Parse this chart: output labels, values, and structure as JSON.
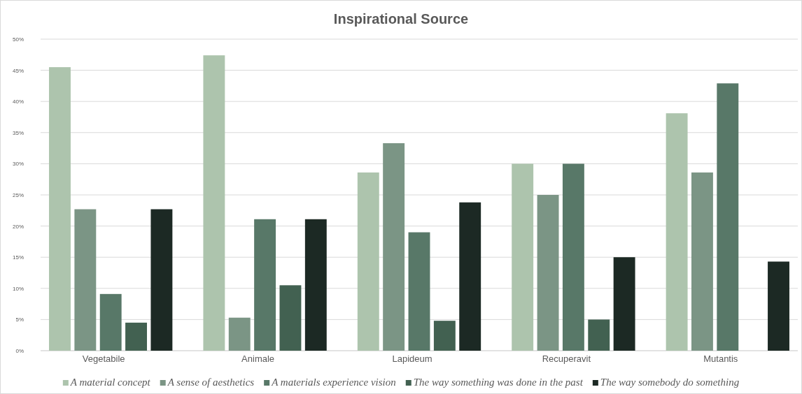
{
  "chart_data": {
    "type": "bar",
    "title": "Inspirational Source",
    "categories": [
      "Vegetabile",
      "Animale",
      "Lapideum",
      "Recuperavit",
      "Mutantis"
    ],
    "series": [
      {
        "name": "A material concept",
        "color": "#adc4ad",
        "values": [
          45.5,
          47.4,
          28.6,
          30,
          38.1
        ]
      },
      {
        "name": "A sense of aesthetics",
        "color": "#7b9585",
        "values": [
          22.7,
          5.3,
          33.3,
          25,
          28.6
        ]
      },
      {
        "name": "A materials experience vision",
        "color": "#587868",
        "values": [
          9.1,
          21.1,
          19.0,
          30,
          42.9
        ]
      },
      {
        "name": "The way something was done in the past",
        "color": "#426151",
        "values": [
          4.5,
          10.5,
          4.8,
          5,
          0
        ]
      },
      {
        "name": "The way somebody do something",
        "color": "#1c2924",
        "values": [
          22.7,
          21.1,
          23.8,
          15,
          14.3
        ]
      }
    ],
    "ylim": [
      0,
      50
    ],
    "yticks": [
      {
        "value": 0,
        "label": "0%"
      },
      {
        "value": 5,
        "label": "5%"
      },
      {
        "value": 10,
        "label": "10%"
      },
      {
        "value": 15,
        "label": "15%"
      },
      {
        "value": 20,
        "label": "20%"
      },
      {
        "value": 25,
        "label": "25%"
      },
      {
        "value": 30,
        "label": "30%"
      },
      {
        "value": 35,
        "label": "35%"
      },
      {
        "value": 40,
        "label": "40%"
      },
      {
        "value": 45,
        "label": "45%"
      },
      {
        "value": 50,
        "label": "50%"
      }
    ],
    "grid": "y",
    "legend": "bottom"
  }
}
